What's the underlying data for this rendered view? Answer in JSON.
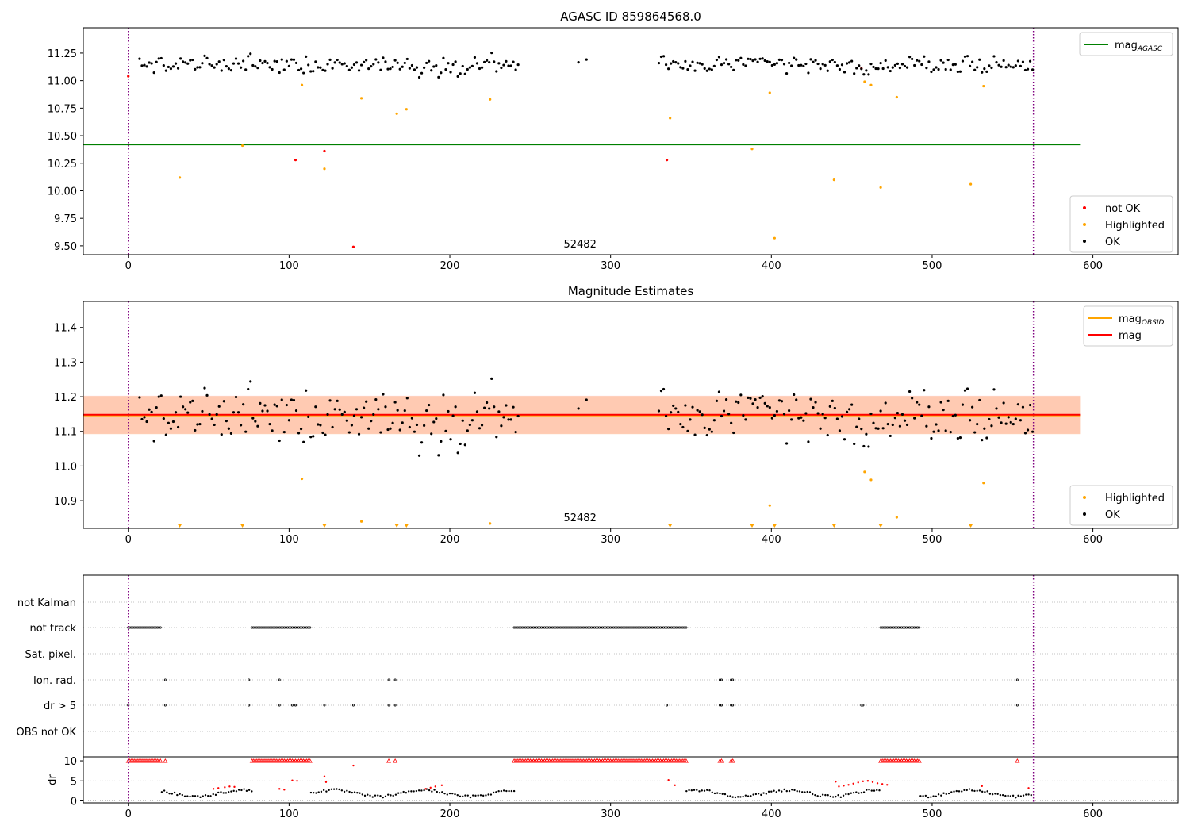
{
  "chart_data": [
    {
      "type": "scatter",
      "title": "AGASC ID 859864568.0",
      "annotation": "52482",
      "xlim": [
        -28,
        653
      ],
      "ylim": [
        9.42,
        11.48
      ],
      "xticks": [
        0,
        100,
        200,
        300,
        400,
        500,
        600
      ],
      "yticks": [
        9.5,
        9.75,
        10.0,
        10.25,
        10.5,
        10.75,
        11.0,
        11.25
      ],
      "ytick_labels": [
        "9.50",
        "9.75",
        "10.00",
        "10.25",
        "10.50",
        "10.75",
        "11.00",
        "11.25"
      ],
      "vlines": [
        0,
        563
      ],
      "legends": [
        {
          "position": "top-right",
          "entries": [
            {
              "label": "mag",
              "sub": "AGASC",
              "color": "#008000",
              "kind": "line"
            }
          ]
        },
        {
          "position": "bottom-right",
          "entries": [
            {
              "label": "not OK",
              "color": "#ff0000",
              "kind": "dot"
            },
            {
              "label": "Highlighted",
              "color": "#ffa500",
              "kind": "dot"
            },
            {
              "label": "OK",
              "color": "#000000",
              "kind": "dot"
            }
          ]
        }
      ],
      "lines": [
        {
          "name": "mag_AGASC",
          "y": 10.42,
          "x": [
            -28,
            592
          ],
          "color": "#008000"
        }
      ],
      "series": [
        {
          "name": "not OK",
          "color": "#ff0000",
          "points": [
            [
              0,
              11.04
            ],
            [
              104,
              10.28
            ],
            [
              122,
              10.36
            ],
            [
              140,
              9.49
            ],
            [
              335,
              10.28
            ],
            [
              456,
              11.11
            ]
          ]
        },
        {
          "name": "Highlighted",
          "color": "#ffa500",
          "points": [
            [
              32,
              10.12
            ],
            [
              71,
              10.41
            ],
            [
              108,
              10.96
            ],
            [
              122,
              10.2
            ],
            [
              145,
              10.84
            ],
            [
              167,
              10.7
            ],
            [
              173,
              10.74
            ],
            [
              225,
              10.83
            ],
            [
              337,
              10.66
            ],
            [
              388,
              10.38
            ],
            [
              399,
              10.89
            ],
            [
              402,
              9.57
            ],
            [
              439,
              10.1
            ],
            [
              458,
              10.99
            ],
            [
              462,
              10.96
            ],
            [
              468,
              10.03
            ],
            [
              478,
              10.85
            ],
            [
              524,
              10.06
            ],
            [
              532,
              10.95
            ]
          ]
        },
        {
          "name": "OK",
          "color": "#000000",
          "points": []
        }
      ]
    },
    {
      "type": "scatter",
      "title": "Magnitude Estimates",
      "annotation": "52482",
      "xlim": [
        -28,
        653
      ],
      "ylim": [
        10.82,
        11.475
      ],
      "xticks": [
        0,
        100,
        200,
        300,
        400,
        500,
        600
      ],
      "yticks": [
        10.9,
        11.0,
        11.1,
        11.2,
        11.3,
        11.4
      ],
      "ytick_labels": [
        "10.9",
        "11.0",
        "11.1",
        "11.2",
        "11.3",
        "11.4"
      ],
      "vlines": [
        0,
        563
      ],
      "bands": [
        {
          "y0": 11.093,
          "y1": 11.203,
          "color": "#ffb6c1",
          "opacity": 0.35
        },
        {
          "y0": 11.092,
          "y1": 11.202,
          "color": "#ffa060",
          "opacity": 0.4
        }
      ],
      "legends": [
        {
          "position": "top-right",
          "entries": [
            {
              "label": "mag",
              "sub": "OBSID",
              "color": "#ffa500",
              "kind": "line"
            },
            {
              "label": "mag",
              "sub": "",
              "color": "#ff0000",
              "kind": "line"
            }
          ]
        },
        {
          "position": "bottom-right",
          "entries": [
            {
              "label": "Highlighted",
              "color": "#ffa500",
              "kind": "dot"
            },
            {
              "label": "OK",
              "color": "#000000",
              "kind": "dot"
            }
          ]
        }
      ],
      "lines": [
        {
          "name": "mag_OBSID",
          "y": 11.146,
          "x": [
            -28,
            592
          ],
          "color": "#ffa500"
        },
        {
          "name": "mag",
          "y": 11.148,
          "x": [
            -28,
            592
          ],
          "color": "#ff0000"
        }
      ],
      "series": [
        {
          "name": "Highlighted",
          "color": "#ffa500",
          "points": [
            [
              108,
              10.963
            ],
            [
              145,
              10.84
            ],
            [
              225,
              10.834
            ],
            [
              399,
              10.886
            ],
            [
              458,
              10.983
            ],
            [
              462,
              10.96
            ],
            [
              478,
              10.852
            ],
            [
              532,
              10.951
            ]
          ]
        },
        {
          "name": "Highlighted below axis",
          "color": "#ffa500",
          "marker": "triangle",
          "x": [
            32,
            71,
            122,
            167,
            173,
            337,
            388,
            402,
            439,
            468,
            524
          ]
        },
        {
          "name": "OK",
          "color": "#000000",
          "points": []
        }
      ]
    },
    {
      "type": "scatter",
      "title": "",
      "xlim": [
        -28,
        653
      ],
      "xticks": [
        0,
        100,
        200,
        300,
        400,
        500,
        600
      ],
      "vlines": [
        0,
        563
      ],
      "flag_rows": [
        "not Kalman",
        "not track",
        "Sat. pixel.",
        "Ion. rad.",
        "dr > 5",
        "OBS not OK"
      ],
      "flags": {
        "not Kalman": [],
        "not track": [
          [
            0,
            20
          ],
          [
            77,
            113
          ],
          [
            240,
            347
          ],
          [
            468,
            492
          ]
        ],
        "Sat. pixel.": [],
        "Ion. rad.": [
          23,
          75,
          94,
          162,
          166,
          368,
          369,
          375,
          376,
          553
        ],
        "dr > 5": [
          0,
          23,
          75,
          94,
          102,
          104,
          122,
          140,
          162,
          166,
          335,
          368,
          369,
          375,
          376,
          456,
          457,
          553
        ],
        "OBS not OK": []
      },
      "dr": {
        "ylabel": "dr",
        "ylim": [
          -0.5,
          11
        ],
        "yticks": [
          0,
          5,
          10
        ],
        "ytick_labels": [
          "0",
          "5",
          "10"
        ],
        "red_triangle_ranges": [
          [
            0,
            20
          ],
          [
            77,
            113
          ],
          [
            240,
            347
          ],
          [
            468,
            492
          ]
        ],
        "red_triangle_points": [
          23,
          162,
          166,
          368,
          369,
          375,
          376,
          553
        ],
        "red_dots": [
          [
            53,
            3.0
          ],
          [
            56,
            3.2
          ],
          [
            60,
            3.4
          ],
          [
            63,
            3.6
          ],
          [
            66,
            3.5
          ],
          [
            94,
            3.0
          ],
          [
            97,
            2.8
          ],
          [
            102,
            5.1
          ],
          [
            105,
            5.0
          ],
          [
            122,
            6.1
          ],
          [
            123,
            4.7
          ],
          [
            140,
            8.8
          ],
          [
            185,
            3.0
          ],
          [
            188,
            3.3
          ],
          [
            191,
            3.6
          ],
          [
            195,
            3.9
          ],
          [
            336,
            5.2
          ],
          [
            340,
            3.9
          ],
          [
            440,
            4.8
          ],
          [
            442,
            3.6
          ],
          [
            445,
            3.8
          ],
          [
            448,
            4.0
          ],
          [
            451,
            4.3
          ],
          [
            454,
            4.6
          ],
          [
            457,
            4.9
          ],
          [
            460,
            5.0
          ],
          [
            463,
            4.7
          ],
          [
            466,
            4.4
          ],
          [
            469,
            4.2
          ],
          [
            472,
            4.0
          ],
          [
            531,
            3.7
          ],
          [
            560,
            3.2
          ]
        ]
      }
    }
  ]
}
